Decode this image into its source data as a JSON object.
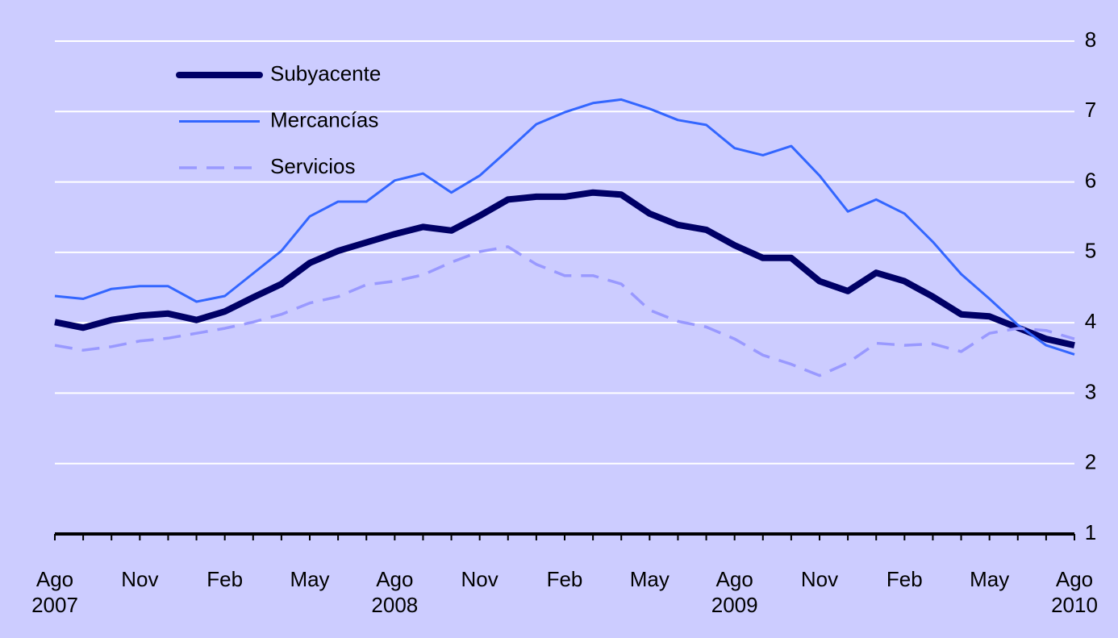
{
  "chart_data": {
    "type": "line",
    "categories": [
      "Ago 2007",
      null,
      null,
      "Nov",
      null,
      null,
      "Feb",
      null,
      null,
      "May",
      null,
      null,
      "Ago 2008",
      null,
      null,
      "Nov",
      null,
      null,
      "Feb",
      null,
      null,
      "May",
      null,
      null,
      "Ago 2009",
      null,
      null,
      "Nov",
      null,
      null,
      "Feb",
      null,
      null,
      "May",
      null,
      null,
      "Ago 2010"
    ],
    "series": [
      {
        "name": "Subyacente",
        "color": "#000066",
        "linestyle": "solid",
        "values": [
          4.01,
          3.93,
          4.04,
          4.1,
          4.13,
          4.04,
          4.16,
          4.36,
          4.55,
          4.85,
          5.02,
          5.14,
          5.26,
          5.36,
          5.31,
          5.52,
          5.75,
          5.79,
          5.79,
          5.85,
          5.82,
          5.55,
          5.39,
          5.32,
          5.1,
          4.92,
          4.92,
          4.59,
          4.45,
          4.71,
          4.59,
          4.37,
          4.12,
          4.09,
          3.93,
          3.77,
          3.68
        ]
      },
      {
        "name": "Mercancías",
        "color": "#3366ff",
        "linestyle": "solid",
        "values": [
          4.38,
          4.34,
          4.48,
          4.52,
          4.52,
          4.3,
          4.38,
          4.7,
          5.02,
          5.51,
          5.72,
          5.72,
          6.02,
          6.12,
          5.85,
          6.09,
          6.45,
          6.82,
          6.99,
          7.12,
          7.17,
          7.04,
          6.88,
          6.81,
          6.48,
          6.38,
          6.51,
          6.09,
          5.58,
          5.75,
          5.55,
          5.15,
          4.69,
          4.34,
          3.97,
          3.68,
          3.55
        ]
      },
      {
        "name": "Servicios",
        "color": "#9999ff",
        "linestyle": "dashed",
        "values": [
          3.68,
          3.61,
          3.66,
          3.74,
          3.78,
          3.85,
          3.92,
          4.01,
          4.12,
          4.28,
          4.37,
          4.54,
          4.59,
          4.68,
          4.86,
          5.01,
          5.08,
          4.83,
          4.67,
          4.67,
          4.55,
          4.18,
          4.02,
          3.94,
          3.77,
          3.54,
          3.41,
          3.25,
          3.43,
          3.71,
          3.68,
          3.7,
          3.59,
          3.85,
          3.92,
          3.89,
          3.77
        ]
      }
    ],
    "ylim": [
      1,
      8
    ],
    "yticks": [
      1,
      2,
      3,
      4,
      5,
      6,
      7,
      8
    ],
    "grid": true,
    "legend": "upper left"
  }
}
